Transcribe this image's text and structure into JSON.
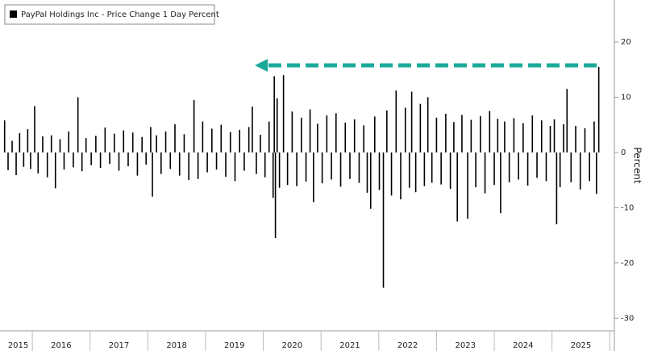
{
  "chart_data": {
    "type": "bar",
    "legend_label": "PayPal Holdings Inc - Price Change 1 Day Percent",
    "y_axis_label": "Percent",
    "color": "#000000",
    "xlim": [
      2015.51,
      2026.08
    ],
    "xticks": [
      2016,
      2017,
      2018,
      2019,
      2020,
      2021,
      2022,
      2023,
      2024,
      2025,
      2026
    ],
    "year_labels": [
      2015,
      2016,
      2017,
      2018,
      2019,
      2020,
      2021,
      2022,
      2023,
      2024,
      2025
    ],
    "ylim": [
      -32.3,
      27.6
    ],
    "yticks": [
      20,
      10,
      0,
      -10,
      -20,
      -30
    ],
    "x": [
      2015.52,
      2015.58,
      2015.65,
      2015.72,
      2015.78,
      2015.85,
      2015.92,
      2015.97,
      2016.04,
      2016.1,
      2016.18,
      2016.26,
      2016.33,
      2016.4,
      2016.48,
      2016.55,
      2016.63,
      2016.71,
      2016.79,
      2016.86,
      2016.93,
      2017.02,
      2017.1,
      2017.18,
      2017.26,
      2017.34,
      2017.42,
      2017.5,
      2017.58,
      2017.66,
      2017.74,
      2017.82,
      2017.9,
      2017.97,
      2018.05,
      2018.08,
      2018.15,
      2018.23,
      2018.31,
      2018.39,
      2018.47,
      2018.55,
      2018.63,
      2018.71,
      2018.8,
      2018.87,
      2018.95,
      2019.03,
      2019.11,
      2019.19,
      2019.27,
      2019.35,
      2019.43,
      2019.51,
      2019.59,
      2019.67,
      2019.75,
      2019.81,
      2019.88,
      2019.95,
      2020.03,
      2020.1,
      2020.17,
      2020.19,
      2020.21,
      2020.24,
      2020.28,
      2020.35,
      2020.42,
      2020.5,
      2020.58,
      2020.66,
      2020.74,
      2020.81,
      2020.87,
      2020.94,
      2021.02,
      2021.1,
      2021.18,
      2021.26,
      2021.34,
      2021.42,
      2021.5,
      2021.58,
      2021.66,
      2021.74,
      2021.8,
      2021.86,
      2021.93,
      2022.01,
      2022.08,
      2022.14,
      2022.22,
      2022.3,
      2022.38,
      2022.46,
      2022.53,
      2022.57,
      2022.64,
      2022.72,
      2022.79,
      2022.85,
      2022.92,
      2023.0,
      2023.08,
      2023.16,
      2023.24,
      2023.3,
      2023.36,
      2023.44,
      2023.54,
      2023.6,
      2023.68,
      2023.76,
      2023.84,
      2023.92,
      2024.0,
      2024.06,
      2024.11,
      2024.18,
      2024.26,
      2024.34,
      2024.42,
      2024.5,
      2024.58,
      2024.66,
      2024.74,
      2024.82,
      2024.9,
      2024.97,
      2025.04,
      2025.08,
      2025.14,
      2025.2,
      2025.26,
      2025.33,
      2025.41,
      2025.49,
      2025.57,
      2025.65,
      2025.73,
      2025.77,
      2025.81
    ],
    "values": [
      5.8,
      -3.2,
      2.1,
      -4.1,
      3.5,
      -2.6,
      4.2,
      -3.0,
      8.4,
      -3.8,
      2.9,
      -4.5,
      3.1,
      -6.5,
      2.4,
      -3.1,
      3.8,
      -2.7,
      10.0,
      -3.4,
      2.6,
      -2.3,
      3.0,
      -2.8,
      4.5,
      -2.1,
      3.4,
      -3.3,
      4.0,
      -2.5,
      3.6,
      -4.2,
      2.8,
      -2.2,
      4.6,
      -8.0,
      3.1,
      -3.9,
      3.8,
      -3.0,
      5.1,
      -4.2,
      3.3,
      -5.0,
      9.5,
      -4.8,
      5.6,
      -3.6,
      4.3,
      -3.1,
      5.0,
      -4.4,
      3.7,
      -5.2,
      4.1,
      -3.3,
      4.6,
      8.3,
      -3.9,
      3.2,
      -4.5,
      5.6,
      -8.2,
      13.8,
      -15.5,
      9.8,
      -6.4,
      14.0,
      -5.9,
      7.4,
      -6.1,
      6.3,
      -5.3,
      7.8,
      -9.0,
      5.2,
      -5.6,
      6.7,
      -4.9,
      7.1,
      -6.2,
      5.4,
      -4.8,
      6.0,
      -5.5,
      4.9,
      -7.3,
      -10.2,
      6.5,
      -6.8,
      -24.5,
      7.6,
      -7.8,
      11.2,
      -8.5,
      8.1,
      -6.4,
      11.0,
      -7.2,
      8.8,
      -6.1,
      10.0,
      -5.5,
      6.3,
      -5.8,
      7.0,
      -6.6,
      5.5,
      -12.5,
      6.8,
      -12.0,
      5.9,
      -6.3,
      6.6,
      -7.4,
      7.5,
      -5.9,
      6.1,
      -11.0,
      5.6,
      -5.4,
      6.2,
      -4.9,
      5.3,
      -6.0,
      6.7,
      -4.6,
      5.8,
      -5.2,
      4.8,
      6.0,
      -13.0,
      -6.3,
      5.1,
      11.5,
      -5.4,
      4.8,
      -6.7,
      4.4,
      -5.2,
      5.6,
      -7.5,
      15.5
    ]
  }
}
